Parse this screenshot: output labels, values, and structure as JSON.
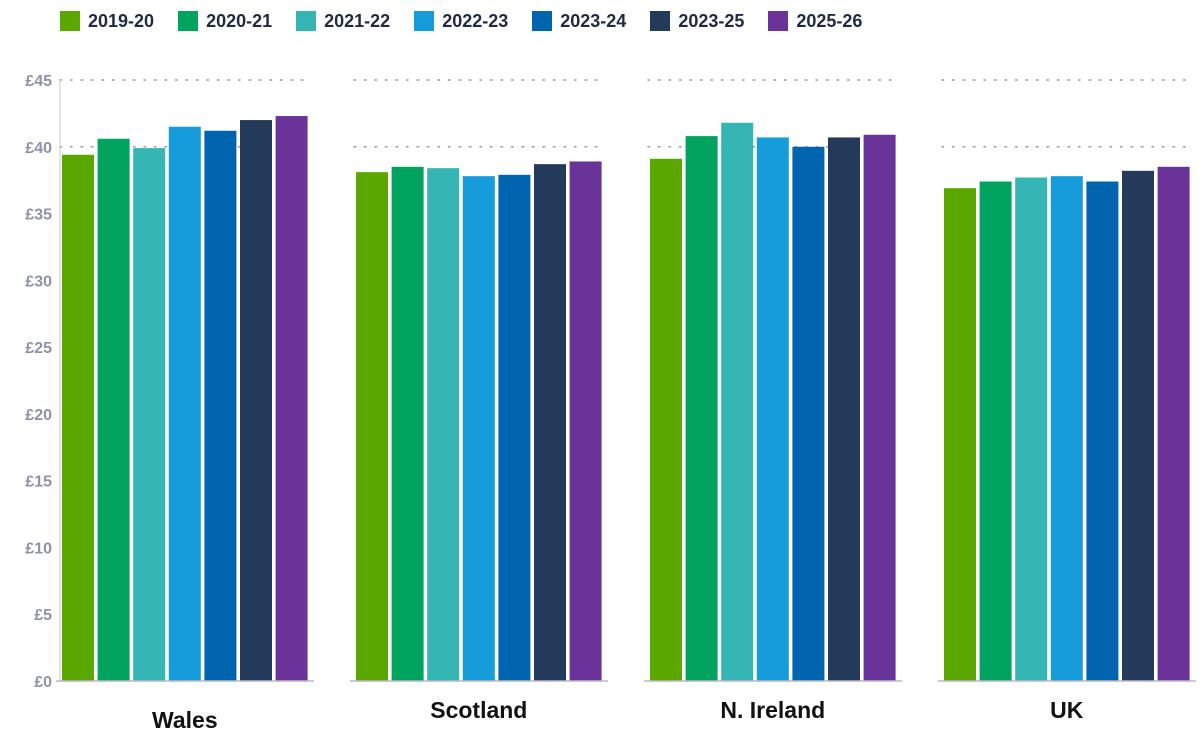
{
  "chart_data": {
    "type": "bar",
    "categories": [
      "Wales",
      "Scotland",
      "N. Ireland",
      "UK"
    ],
    "series": [
      {
        "name": "2019-20",
        "color": "#5aa700",
        "values": [
          39.4,
          38.1,
          39.1,
          36.9
        ]
      },
      {
        "name": "2020-21",
        "color": "#00a45f",
        "values": [
          40.6,
          38.5,
          40.8,
          37.4
        ]
      },
      {
        "name": "2021-22",
        "color": "#35b6b4",
        "values": [
          39.9,
          38.4,
          41.8,
          37.7
        ]
      },
      {
        "name": "2022-23",
        "color": "#169cdb",
        "values": [
          41.5,
          37.8,
          40.7,
          37.8
        ]
      },
      {
        "name": "2023-24",
        "color": "#0064af",
        "values": [
          41.2,
          37.9,
          40.0,
          37.4
        ]
      },
      {
        "name": "2023-25",
        "color": "#243a5a",
        "values": [
          42.0,
          38.7,
          40.7,
          38.2
        ]
      },
      {
        "name": "2025-26",
        "color": "#6a3399",
        "values": [
          42.3,
          38.9,
          40.9,
          38.5
        ]
      }
    ],
    "y_ticks": [
      "£0",
      "£5",
      "£10",
      "£15",
      "£20",
      "£25",
      "£30",
      "£35",
      "£40",
      "£45"
    ],
    "ylim": [
      0,
      45
    ],
    "grid": "dotted, at £40 and £45",
    "legend_position": "top-left"
  }
}
